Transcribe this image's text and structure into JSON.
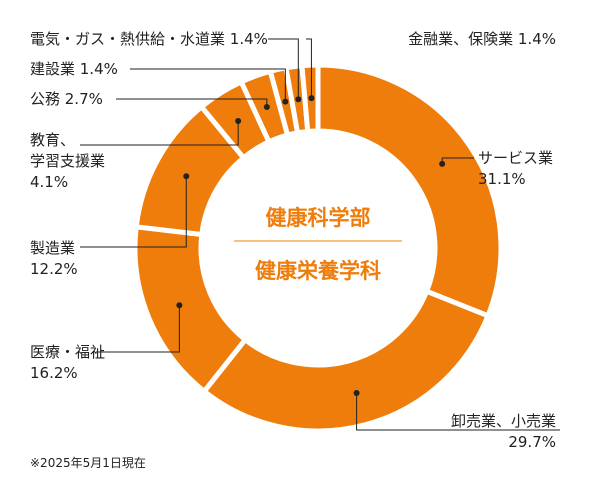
{
  "chart_data": {
    "type": "donut",
    "center_title_1": "健康科学部",
    "center_title_2": "健康栄養学科",
    "note": "※2025年5月1日現在",
    "colors": {
      "slice": "#ef7d0c",
      "separator": "#ffffff",
      "leader": "#222222",
      "center_line": "#ef7d0c"
    },
    "slices": [
      {
        "name": "サービス業",
        "value": 31.1,
        "label_lines": [
          "サービス業"
        ],
        "value_text": "31.1%"
      },
      {
        "name": "卸売業、小売業",
        "value": 29.7,
        "label_lines": [
          "卸売業、小売業"
        ],
        "value_text": "29.7%"
      },
      {
        "name": "医療・福祉",
        "value": 16.2,
        "label_lines": [
          "医療・福祉"
        ],
        "value_text": "16.2%"
      },
      {
        "name": "製造業",
        "value": 12.2,
        "label_lines": [
          "製造業"
        ],
        "value_text": "12.2%"
      },
      {
        "name": "教育、学習支援業",
        "value": 4.1,
        "label_lines": [
          "教育、",
          "学習支援業"
        ],
        "value_text": "4.1%"
      },
      {
        "name": "公務",
        "value": 2.7,
        "label_lines": [
          "公務"
        ],
        "value_text": "2.7%"
      },
      {
        "name": "建設業",
        "value": 1.4,
        "label_lines": [
          "建設業"
        ],
        "value_text": "1.4%"
      },
      {
        "name": "電気・ガス・熱供給・水道業",
        "value": 1.4,
        "label_lines": [
          "電気・ガス・熱供給・水道業"
        ],
        "value_text": "1.4%"
      },
      {
        "name": "金融業、保険業",
        "value": 1.4,
        "label_lines": [
          "金融業、保険業"
        ],
        "value_text": "1.4%"
      }
    ]
  }
}
